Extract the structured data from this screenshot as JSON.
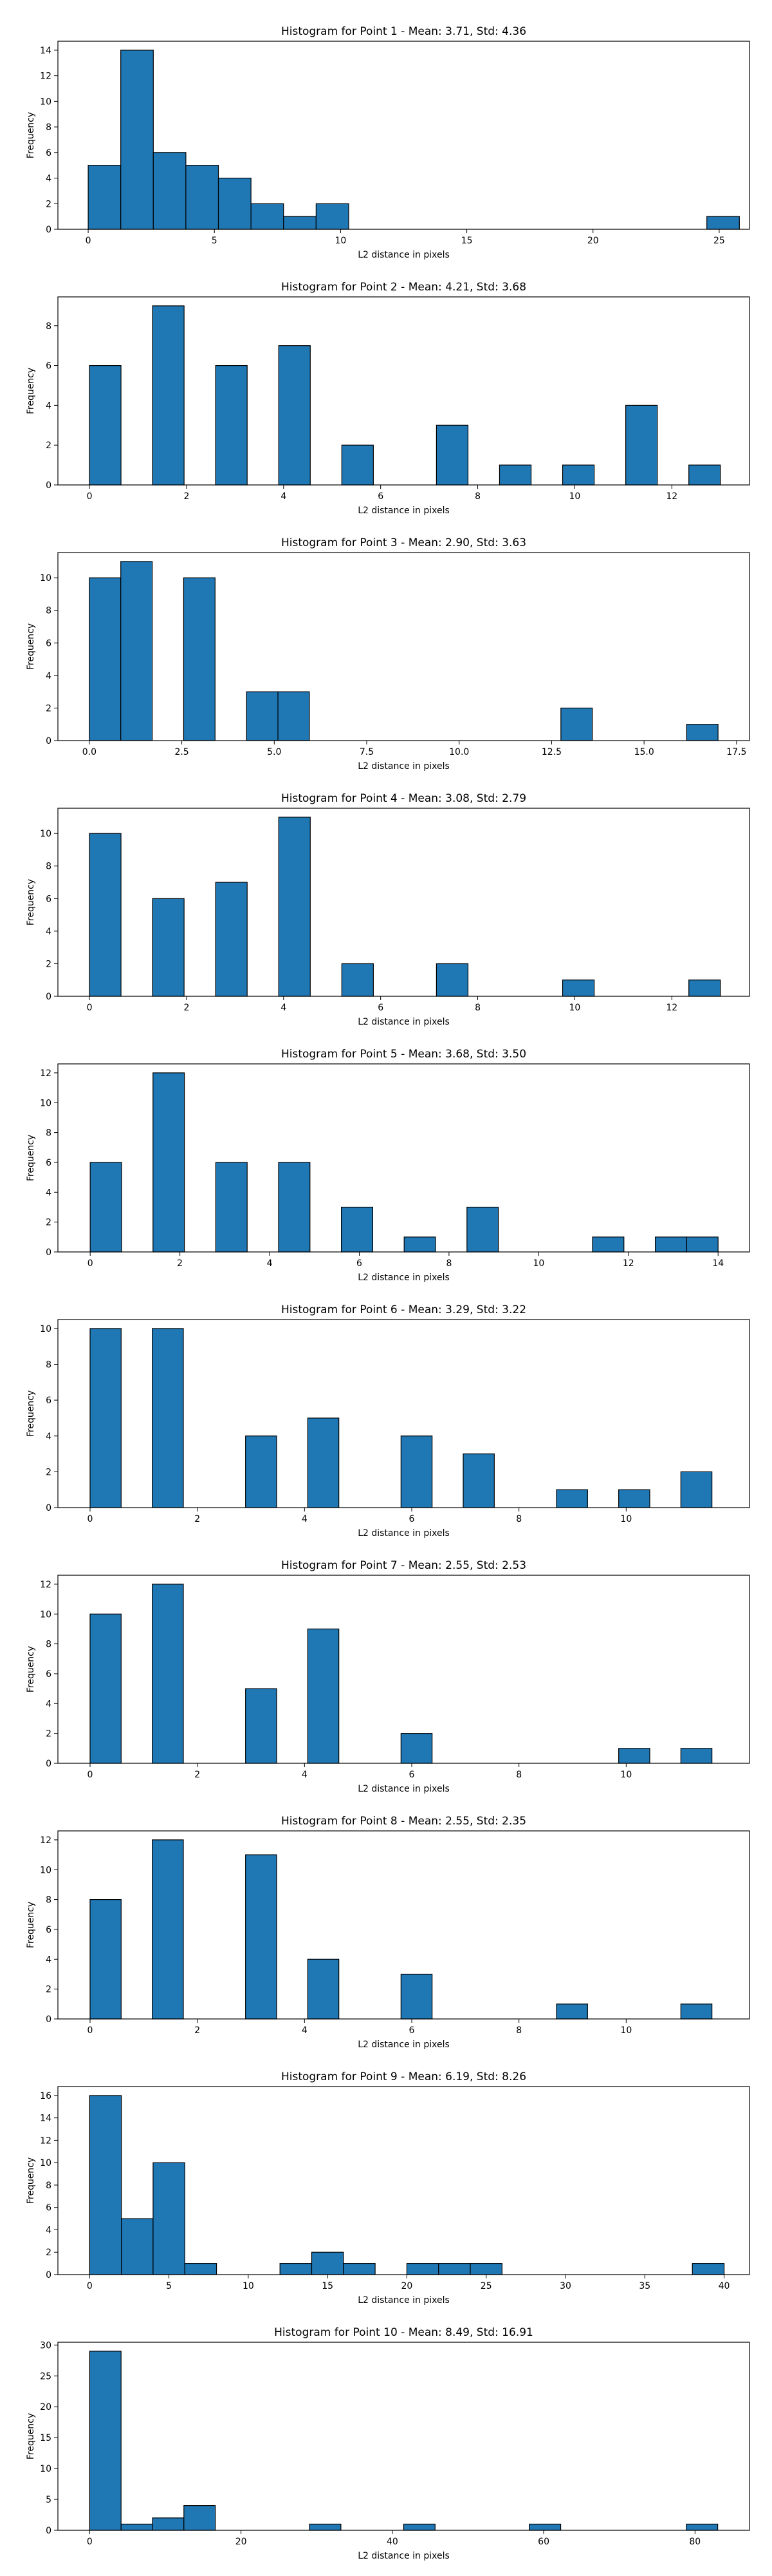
{
  "chart_data": [
    {
      "type": "bar",
      "title": "Histogram for Point 1 - Mean: 3.71, Std: 4.36",
      "xlabel": "L2 distance in pixels",
      "ylabel": "Frequency",
      "xlim": [
        -1.2,
        26.2
      ],
      "ylim": [
        0,
        14.7
      ],
      "xticks": [
        0,
        5,
        10,
        15,
        20,
        25
      ],
      "yticks": [
        0,
        2,
        4,
        6,
        8,
        10,
        12,
        14
      ],
      "xtick_labels": [
        "0",
        "5",
        "10",
        "15",
        "20",
        "25"
      ],
      "ytick_labels": [
        "0",
        "2",
        "4",
        "6",
        "8",
        "10",
        "12",
        "14"
      ],
      "bins": [
        {
          "x0": 0,
          "x1": 1.29,
          "count": 5
        },
        {
          "x0": 1.29,
          "x1": 2.58,
          "count": 14
        },
        {
          "x0": 2.58,
          "x1": 3.87,
          "count": 6
        },
        {
          "x0": 3.87,
          "x1": 5.16,
          "count": 5
        },
        {
          "x0": 5.16,
          "x1": 6.45,
          "count": 4
        },
        {
          "x0": 6.45,
          "x1": 7.74,
          "count": 2
        },
        {
          "x0": 7.74,
          "x1": 9.03,
          "count": 1
        },
        {
          "x0": 9.03,
          "x1": 10.32,
          "count": 2
        },
        {
          "x0": 24.51,
          "x1": 25.8,
          "count": 1
        }
      ]
    },
    {
      "type": "bar",
      "title": "Histogram for Point 2 - Mean: 4.21, Std: 3.68",
      "xlabel": "L2 distance in pixels",
      "ylabel": "Frequency",
      "xlim": [
        -0.65,
        13.6
      ],
      "ylim": [
        0,
        9.45
      ],
      "xticks": [
        0,
        2,
        4,
        6,
        8,
        10,
        12
      ],
      "yticks": [
        0,
        2,
        4,
        6,
        8
      ],
      "xtick_labels": [
        "0",
        "2",
        "4",
        "6",
        "8",
        "10",
        "12"
      ],
      "ytick_labels": [
        "0",
        "2",
        "4",
        "6",
        "8"
      ],
      "bins": [
        {
          "x0": 0,
          "x1": 0.65,
          "count": 6
        },
        {
          "x0": 1.3,
          "x1": 1.95,
          "count": 9
        },
        {
          "x0": 2.6,
          "x1": 3.25,
          "count": 6
        },
        {
          "x0": 3.9,
          "x1": 4.55,
          "count": 7
        },
        {
          "x0": 5.2,
          "x1": 5.85,
          "count": 2
        },
        {
          "x0": 7.15,
          "x1": 7.8,
          "count": 3
        },
        {
          "x0": 8.45,
          "x1": 9.1,
          "count": 1
        },
        {
          "x0": 9.75,
          "x1": 10.4,
          "count": 1
        },
        {
          "x0": 11.05,
          "x1": 11.7,
          "count": 4
        },
        {
          "x0": 12.35,
          "x1": 13.0,
          "count": 1
        }
      ]
    },
    {
      "type": "bar",
      "title": "Histogram for Point 3 - Mean: 2.90, Std: 3.63",
      "xlabel": "L2 distance in pixels",
      "ylabel": "Frequency",
      "xlim": [
        -0.85,
        17.85
      ],
      "ylim": [
        0,
        11.55
      ],
      "xticks": [
        0,
        2.5,
        5,
        7.5,
        10,
        12.5,
        15,
        17.5
      ],
      "yticks": [
        0,
        2,
        4,
        6,
        8,
        10
      ],
      "xtick_labels": [
        "0.0",
        "2.5",
        "5.0",
        "7.5",
        "10.0",
        "12.5",
        "15.0",
        "17.5"
      ],
      "ytick_labels": [
        "0",
        "2",
        "4",
        "6",
        "8",
        "10"
      ],
      "bins": [
        {
          "x0": 0,
          "x1": 0.85,
          "count": 10
        },
        {
          "x0": 0.85,
          "x1": 1.7,
          "count": 11
        },
        {
          "x0": 2.55,
          "x1": 3.4,
          "count": 10
        },
        {
          "x0": 4.25,
          "x1": 5.1,
          "count": 3
        },
        {
          "x0": 5.1,
          "x1": 5.95,
          "count": 3
        },
        {
          "x0": 12.75,
          "x1": 13.6,
          "count": 2
        },
        {
          "x0": 16.15,
          "x1": 17.0,
          "count": 1
        }
      ]
    },
    {
      "type": "bar",
      "title": "Histogram for Point 4 - Mean: 3.08, Std: 2.79",
      "xlabel": "L2 distance in pixels",
      "ylabel": "Frequency",
      "xlim": [
        -0.65,
        13.6
      ],
      "ylim": [
        0,
        11.55
      ],
      "xticks": [
        0,
        2,
        4,
        6,
        8,
        10,
        12
      ],
      "yticks": [
        0,
        2,
        4,
        6,
        8,
        10
      ],
      "xtick_labels": [
        "0",
        "2",
        "4",
        "6",
        "8",
        "10",
        "12"
      ],
      "ytick_labels": [
        "0",
        "2",
        "4",
        "6",
        "8",
        "10"
      ],
      "bins": [
        {
          "x0": 0,
          "x1": 0.65,
          "count": 10
        },
        {
          "x0": 1.3,
          "x1": 1.95,
          "count": 6
        },
        {
          "x0": 2.6,
          "x1": 3.25,
          "count": 7
        },
        {
          "x0": 3.9,
          "x1": 4.55,
          "count": 11
        },
        {
          "x0": 5.2,
          "x1": 5.85,
          "count": 2
        },
        {
          "x0": 7.15,
          "x1": 7.8,
          "count": 2
        },
        {
          "x0": 9.75,
          "x1": 10.4,
          "count": 1
        },
        {
          "x0": 12.35,
          "x1": 13.0,
          "count": 1
        }
      ]
    },
    {
      "type": "bar",
      "title": "Histogram for Point 5 - Mean: 3.68, Std: 3.50",
      "xlabel": "L2 distance in pixels",
      "ylabel": "Frequency",
      "xlim": [
        -0.72,
        14.7
      ],
      "ylim": [
        0,
        12.6
      ],
      "xticks": [
        0,
        2,
        4,
        6,
        8,
        10,
        12,
        14
      ],
      "yticks": [
        0,
        2,
        4,
        6,
        8,
        10,
        12
      ],
      "xtick_labels": [
        "0",
        "2",
        "4",
        "6",
        "8",
        "10",
        "12",
        "14"
      ],
      "ytick_labels": [
        "0",
        "2",
        "4",
        "6",
        "8",
        "10",
        "12"
      ],
      "bins": [
        {
          "x0": 0,
          "x1": 0.7,
          "count": 6
        },
        {
          "x0": 1.4,
          "x1": 2.1,
          "count": 12
        },
        {
          "x0": 2.8,
          "x1": 3.5,
          "count": 6
        },
        {
          "x0": 4.2,
          "x1": 4.9,
          "count": 6
        },
        {
          "x0": 5.6,
          "x1": 6.3,
          "count": 3
        },
        {
          "x0": 7.0,
          "x1": 7.7,
          "count": 1
        },
        {
          "x0": 8.4,
          "x1": 9.1,
          "count": 3
        },
        {
          "x0": 11.2,
          "x1": 11.9,
          "count": 1
        },
        {
          "x0": 12.6,
          "x1": 13.3,
          "count": 1
        },
        {
          "x0": 13.3,
          "x1": 14.0,
          "count": 1
        }
      ]
    },
    {
      "type": "bar",
      "title": "Histogram for Point 6 - Mean: 3.29, Std: 3.22",
      "xlabel": "L2 distance in pixels",
      "ylabel": "Frequency",
      "xlim": [
        -0.6,
        12.3
      ],
      "ylim": [
        0,
        10.5
      ],
      "xticks": [
        0,
        2,
        4,
        6,
        8,
        10
      ],
      "yticks": [
        0,
        2,
        4,
        6,
        8,
        10
      ],
      "xtick_labels": [
        "0",
        "2",
        "4",
        "6",
        "8",
        "10"
      ],
      "ytick_labels": [
        "0",
        "2",
        "4",
        "6",
        "8",
        "10"
      ],
      "bins": [
        {
          "x0": 0,
          "x1": 0.58,
          "count": 10
        },
        {
          "x0": 1.16,
          "x1": 1.74,
          "count": 10
        },
        {
          "x0": 2.9,
          "x1": 3.48,
          "count": 4
        },
        {
          "x0": 4.06,
          "x1": 4.64,
          "count": 5
        },
        {
          "x0": 5.8,
          "x1": 6.38,
          "count": 4
        },
        {
          "x0": 6.96,
          "x1": 7.54,
          "count": 3
        },
        {
          "x0": 8.7,
          "x1": 9.28,
          "count": 1
        },
        {
          "x0": 9.86,
          "x1": 10.44,
          "count": 1
        },
        {
          "x0": 11.02,
          "x1": 11.6,
          "count": 2
        }
      ]
    },
    {
      "type": "bar",
      "title": "Histogram for Point 7 - Mean: 2.55, Std: 2.53",
      "xlabel": "L2 distance in pixels",
      "ylabel": "Frequency",
      "xlim": [
        -0.6,
        12.3
      ],
      "ylim": [
        0,
        12.6
      ],
      "xticks": [
        0,
        2,
        4,
        6,
        8,
        10
      ],
      "yticks": [
        0,
        2,
        4,
        6,
        8,
        10,
        12
      ],
      "xtick_labels": [
        "0",
        "2",
        "4",
        "6",
        "8",
        "10"
      ],
      "ytick_labels": [
        "0",
        "2",
        "4",
        "6",
        "8",
        "10",
        "12"
      ],
      "bins": [
        {
          "x0": 0,
          "x1": 0.58,
          "count": 10
        },
        {
          "x0": 1.16,
          "x1": 1.74,
          "count": 12
        },
        {
          "x0": 2.9,
          "x1": 3.48,
          "count": 5
        },
        {
          "x0": 4.06,
          "x1": 4.64,
          "count": 9
        },
        {
          "x0": 5.8,
          "x1": 6.38,
          "count": 2
        },
        {
          "x0": 9.86,
          "x1": 10.44,
          "count": 1
        },
        {
          "x0": 11.02,
          "x1": 11.6,
          "count": 1
        }
      ]
    },
    {
      "type": "bar",
      "title": "Histogram for Point 8 - Mean: 2.55, Std: 2.35",
      "xlabel": "L2 distance in pixels",
      "ylabel": "Frequency",
      "xlim": [
        -0.6,
        12.3
      ],
      "ylim": [
        0,
        12.6
      ],
      "xticks": [
        0,
        2,
        4,
        6,
        8,
        10
      ],
      "yticks": [
        0,
        2,
        4,
        6,
        8,
        10,
        12
      ],
      "xtick_labels": [
        "0",
        "2",
        "4",
        "6",
        "8",
        "10"
      ],
      "ytick_labels": [
        "0",
        "2",
        "4",
        "6",
        "8",
        "10",
        "12"
      ],
      "bins": [
        {
          "x0": 0,
          "x1": 0.58,
          "count": 8
        },
        {
          "x0": 1.16,
          "x1": 1.74,
          "count": 12
        },
        {
          "x0": 2.9,
          "x1": 3.48,
          "count": 11
        },
        {
          "x0": 4.06,
          "x1": 4.64,
          "count": 4
        },
        {
          "x0": 5.8,
          "x1": 6.38,
          "count": 3
        },
        {
          "x0": 8.7,
          "x1": 9.28,
          "count": 1
        },
        {
          "x0": 11.02,
          "x1": 11.6,
          "count": 1
        }
      ]
    },
    {
      "type": "bar",
      "title": "Histogram for Point 9 - Mean: 6.19, Std: 8.26",
      "xlabel": "L2 distance in pixels",
      "ylabel": "Frequency",
      "xlim": [
        -2.0,
        41.6
      ],
      "ylim": [
        0,
        16.8
      ],
      "xticks": [
        0,
        5,
        10,
        15,
        20,
        25,
        30,
        35,
        40
      ],
      "yticks": [
        0,
        2,
        4,
        6,
        8,
        10,
        12,
        14,
        16
      ],
      "xtick_labels": [
        "0",
        "5",
        "10",
        "15",
        "20",
        "25",
        "30",
        "35",
        "40"
      ],
      "ytick_labels": [
        "0",
        "2",
        "4",
        "6",
        "8",
        "10",
        "12",
        "14",
        "16"
      ],
      "bins": [
        {
          "x0": 0,
          "x1": 2.0,
          "count": 16
        },
        {
          "x0": 2.0,
          "x1": 4.0,
          "count": 5
        },
        {
          "x0": 4.0,
          "x1": 6.0,
          "count": 10
        },
        {
          "x0": 6.0,
          "x1": 8.0,
          "count": 1
        },
        {
          "x0": 12.0,
          "x1": 14.0,
          "count": 1
        },
        {
          "x0": 14.0,
          "x1": 16.0,
          "count": 2
        },
        {
          "x0": 16.0,
          "x1": 18.0,
          "count": 1
        },
        {
          "x0": 20.0,
          "x1": 22.0,
          "count": 1
        },
        {
          "x0": 22.0,
          "x1": 24.0,
          "count": 1
        },
        {
          "x0": 24.0,
          "x1": 26.0,
          "count": 1
        },
        {
          "x0": 38.0,
          "x1": 40.0,
          "count": 1
        }
      ]
    },
    {
      "type": "bar",
      "title": "Histogram for Point 10 - Mean: 8.49, Std: 16.91",
      "xlabel": "L2 distance in pixels",
      "ylabel": "Frequency",
      "xlim": [
        -4.2,
        87.2
      ],
      "ylim": [
        0,
        30.45
      ],
      "xticks": [
        0,
        20,
        40,
        60,
        80
      ],
      "yticks": [
        0,
        5,
        10,
        15,
        20,
        25,
        30
      ],
      "xtick_labels": [
        "0",
        "20",
        "40",
        "60",
        "80"
      ],
      "ytick_labels": [
        "0",
        "5",
        "10",
        "15",
        "20",
        "25",
        "30"
      ],
      "bins": [
        {
          "x0": 0,
          "x1": 4.15,
          "count": 29
        },
        {
          "x0": 4.15,
          "x1": 8.3,
          "count": 1
        },
        {
          "x0": 8.3,
          "x1": 12.45,
          "count": 2
        },
        {
          "x0": 12.45,
          "x1": 16.6,
          "count": 4
        },
        {
          "x0": 29.05,
          "x1": 33.2,
          "count": 1
        },
        {
          "x0": 41.5,
          "x1": 45.65,
          "count": 1
        },
        {
          "x0": 58.1,
          "x1": 62.25,
          "count": 1
        },
        {
          "x0": 78.85,
          "x1": 83.0,
          "count": 1
        }
      ]
    }
  ],
  "colors": {
    "bar_fill": "#1f77b4",
    "bar_edge": "#000000",
    "axis": "#000000",
    "text": "#000000",
    "background": "#ffffff"
  }
}
